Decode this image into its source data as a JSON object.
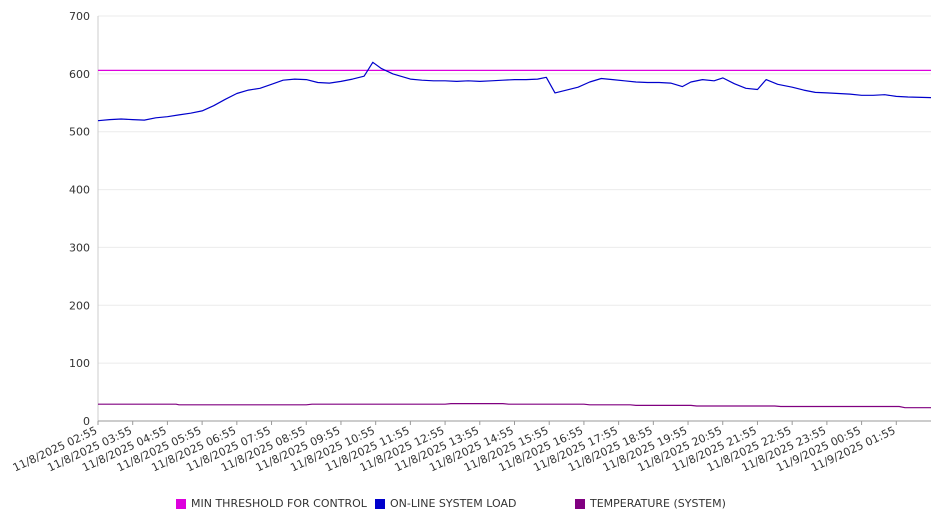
{
  "chart_data": {
    "type": "line",
    "title": "",
    "xlabel": "",
    "ylabel": "",
    "ylim": [
      0,
      700
    ],
    "y_ticks": [
      0,
      100,
      200,
      300,
      400,
      500,
      600,
      700
    ],
    "x_ticks": [
      "11/8/2025 02:55",
      "11/8/2025 03:55",
      "11/8/2025 04:55",
      "11/8/2025 05:55",
      "11/8/2025 06:55",
      "11/8/2025 07:55",
      "11/8/2025 08:55",
      "11/8/2025 09:55",
      "11/8/2025 10:55",
      "11/8/2025 11:55",
      "11/8/2025 12:55",
      "11/8/2025 13:55",
      "11/8/2025 14:55",
      "11/8/2025 15:55",
      "11/8/2025 16:55",
      "11/8/2025 17:55",
      "11/8/2025 18:55",
      "11/8/2025 19:55",
      "11/8/2025 20:55",
      "11/8/2025 21:55",
      "11/8/2025 22:55",
      "11/8/2025 23:55",
      "11/9/2025 00:55",
      "11/9/2025 01:55"
    ],
    "x_range": [
      "11/8/2025 02:55",
      "11/9/2025 02:55"
    ],
    "grid": true,
    "legend_position": "bottom",
    "series": [
      {
        "name": "MIN THRESHOLD FOR CONTROL",
        "color": "#dd00dd",
        "points": [
          [
            "11/8/2025 02:55",
            606
          ],
          [
            "11/9/2025 02:55",
            606
          ]
        ]
      },
      {
        "name": "ON-LINE SYSTEM LOAD",
        "color": "#0000cc",
        "points": [
          [
            "11/8/2025 02:55",
            519
          ],
          [
            "11/8/2025 03:15",
            521
          ],
          [
            "11/8/2025 03:35",
            522
          ],
          [
            "11/8/2025 03:55",
            521
          ],
          [
            "11/8/2025 04:15",
            520
          ],
          [
            "11/8/2025 04:35",
            524
          ],
          [
            "11/8/2025 04:55",
            526
          ],
          [
            "11/8/2025 05:15",
            529
          ],
          [
            "11/8/2025 05:35",
            532
          ],
          [
            "11/8/2025 05:55",
            536
          ],
          [
            "11/8/2025 06:15",
            545
          ],
          [
            "11/8/2025 06:35",
            556
          ],
          [
            "11/8/2025 06:55",
            566
          ],
          [
            "11/8/2025 07:15",
            572
          ],
          [
            "11/8/2025 07:35",
            575
          ],
          [
            "11/8/2025 07:55",
            582
          ],
          [
            "11/8/2025 08:15",
            589
          ],
          [
            "11/8/2025 08:35",
            591
          ],
          [
            "11/8/2025 08:55",
            590
          ],
          [
            "11/8/2025 09:15",
            585
          ],
          [
            "11/8/2025 09:35",
            584
          ],
          [
            "11/8/2025 09:55",
            587
          ],
          [
            "11/8/2025 10:15",
            591
          ],
          [
            "11/8/2025 10:35",
            596
          ],
          [
            "11/8/2025 10:50",
            620
          ],
          [
            "11/8/2025 11:05",
            609
          ],
          [
            "11/8/2025 11:25",
            600
          ],
          [
            "11/8/2025 11:55",
            591
          ],
          [
            "11/8/2025 12:15",
            589
          ],
          [
            "11/8/2025 12:35",
            588
          ],
          [
            "11/8/2025 12:55",
            588
          ],
          [
            "11/8/2025 13:15",
            587
          ],
          [
            "11/8/2025 13:35",
            588
          ],
          [
            "11/8/2025 13:55",
            587
          ],
          [
            "11/8/2025 14:15",
            588
          ],
          [
            "11/8/2025 14:35",
            589
          ],
          [
            "11/8/2025 14:55",
            590
          ],
          [
            "11/8/2025 15:15",
            590
          ],
          [
            "11/8/2025 15:35",
            591
          ],
          [
            "11/8/2025 15:50",
            594
          ],
          [
            "11/8/2025 16:05",
            567
          ],
          [
            "11/8/2025 16:25",
            572
          ],
          [
            "11/8/2025 16:45",
            577
          ],
          [
            "11/8/2025 17:05",
            586
          ],
          [
            "11/8/2025 17:25",
            592
          ],
          [
            "11/8/2025 17:45",
            590
          ],
          [
            "11/8/2025 18:05",
            588
          ],
          [
            "11/8/2025 18:25",
            586
          ],
          [
            "11/8/2025 18:45",
            585
          ],
          [
            "11/8/2025 19:05",
            585
          ],
          [
            "11/8/2025 19:25",
            584
          ],
          [
            "11/8/2025 19:45",
            578
          ],
          [
            "11/8/2025 20:00",
            586
          ],
          [
            "11/8/2025 20:20",
            590
          ],
          [
            "11/8/2025 20:40",
            588
          ],
          [
            "11/8/2025 20:55",
            593
          ],
          [
            "11/8/2025 21:15",
            583
          ],
          [
            "11/8/2025 21:35",
            575
          ],
          [
            "11/8/2025 21:55",
            573
          ],
          [
            "11/8/2025 22:10",
            590
          ],
          [
            "11/8/2025 22:30",
            582
          ],
          [
            "11/8/2025 22:55",
            577
          ],
          [
            "11/8/2025 23:15",
            572
          ],
          [
            "11/8/2025 23:35",
            568
          ],
          [
            "11/8/2025 23:55",
            567
          ],
          [
            "11/9/2025 00:15",
            566
          ],
          [
            "11/9/2025 00:35",
            565
          ],
          [
            "11/9/2025 00:55",
            563
          ],
          [
            "11/9/2025 01:15",
            563
          ],
          [
            "11/9/2025 01:35",
            564
          ],
          [
            "11/9/2025 01:55",
            561
          ],
          [
            "11/9/2025 02:15",
            560
          ],
          [
            "11/9/2025 02:55",
            559
          ]
        ]
      },
      {
        "name": "TEMPERATURE (SYSTEM)",
        "color": "#800080",
        "points": [
          [
            "11/8/2025 02:55",
            29
          ],
          [
            "11/8/2025 05:10",
            29
          ],
          [
            "11/8/2025 05:15",
            28
          ],
          [
            "11/8/2025 08:55",
            28
          ],
          [
            "11/8/2025 09:05",
            29
          ],
          [
            "11/8/2025 12:55",
            29
          ],
          [
            "11/8/2025 13:05",
            30
          ],
          [
            "11/8/2025 14:35",
            30
          ],
          [
            "11/8/2025 14:45",
            29
          ],
          [
            "11/8/2025 16:55",
            29
          ],
          [
            "11/8/2025 17:05",
            28
          ],
          [
            "11/8/2025 18:15",
            28
          ],
          [
            "11/8/2025 18:25",
            27
          ],
          [
            "11/8/2025 20:00",
            27
          ],
          [
            "11/8/2025 20:10",
            26
          ],
          [
            "11/8/2025 22:25",
            26
          ],
          [
            "11/8/2025 22:35",
            25
          ],
          [
            "11/9/2025 02:00",
            25
          ],
          [
            "11/9/2025 02:10",
            23
          ],
          [
            "11/9/2025 02:55",
            23
          ]
        ]
      }
    ]
  }
}
